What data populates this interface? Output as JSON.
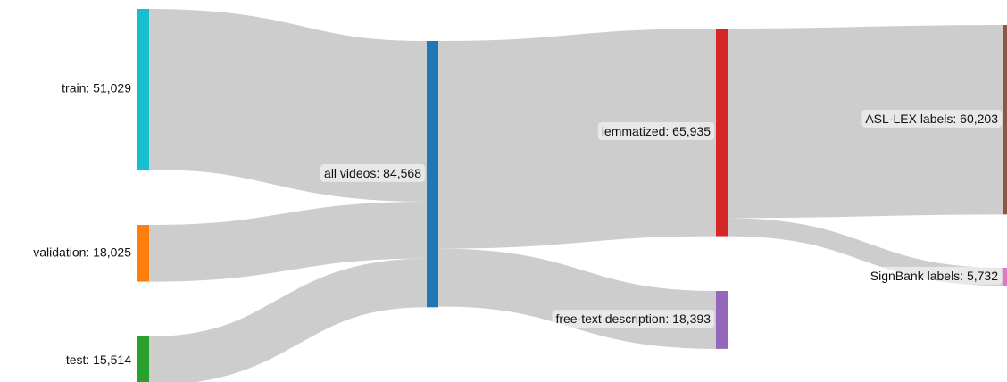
{
  "chart_data": {
    "type": "sankey",
    "nodes": [
      {
        "label": "train: 51,029",
        "value": 51029,
        "color": "#17becf"
      },
      {
        "label": "validation: 18,025",
        "value": 18025,
        "color": "#ff7f0e"
      },
      {
        "label": "test: 15,514",
        "value": 15514,
        "color": "#2ca02c"
      },
      {
        "label": "all videos: 84,568",
        "value": 84568,
        "color": "#1f77b4"
      },
      {
        "label": "lemmatized: 65,935",
        "value": 65935,
        "color": "#d62728"
      },
      {
        "label": "free-text description: 18,393",
        "value": 18393,
        "color": "#9467bd"
      },
      {
        "label": "ASL-LEX labels: 60,203",
        "value": 60203,
        "color": "#8c564b"
      },
      {
        "label": "SignBank labels: 5,732",
        "value": 5732,
        "color": "#e377c2"
      }
    ],
    "links": [
      {
        "source": 0,
        "target": 3,
        "value": 51029
      },
      {
        "source": 1,
        "target": 3,
        "value": 18025
      },
      {
        "source": 2,
        "target": 3,
        "value": 15514
      },
      {
        "source": 3,
        "target": 4,
        "value": 65935
      },
      {
        "source": 3,
        "target": 5,
        "value": 18393
      },
      {
        "source": 4,
        "target": 6,
        "value": 60203
      },
      {
        "source": 4,
        "target": 7,
        "value": 5732
      }
    ],
    "link_color": "#c8c8c8"
  }
}
